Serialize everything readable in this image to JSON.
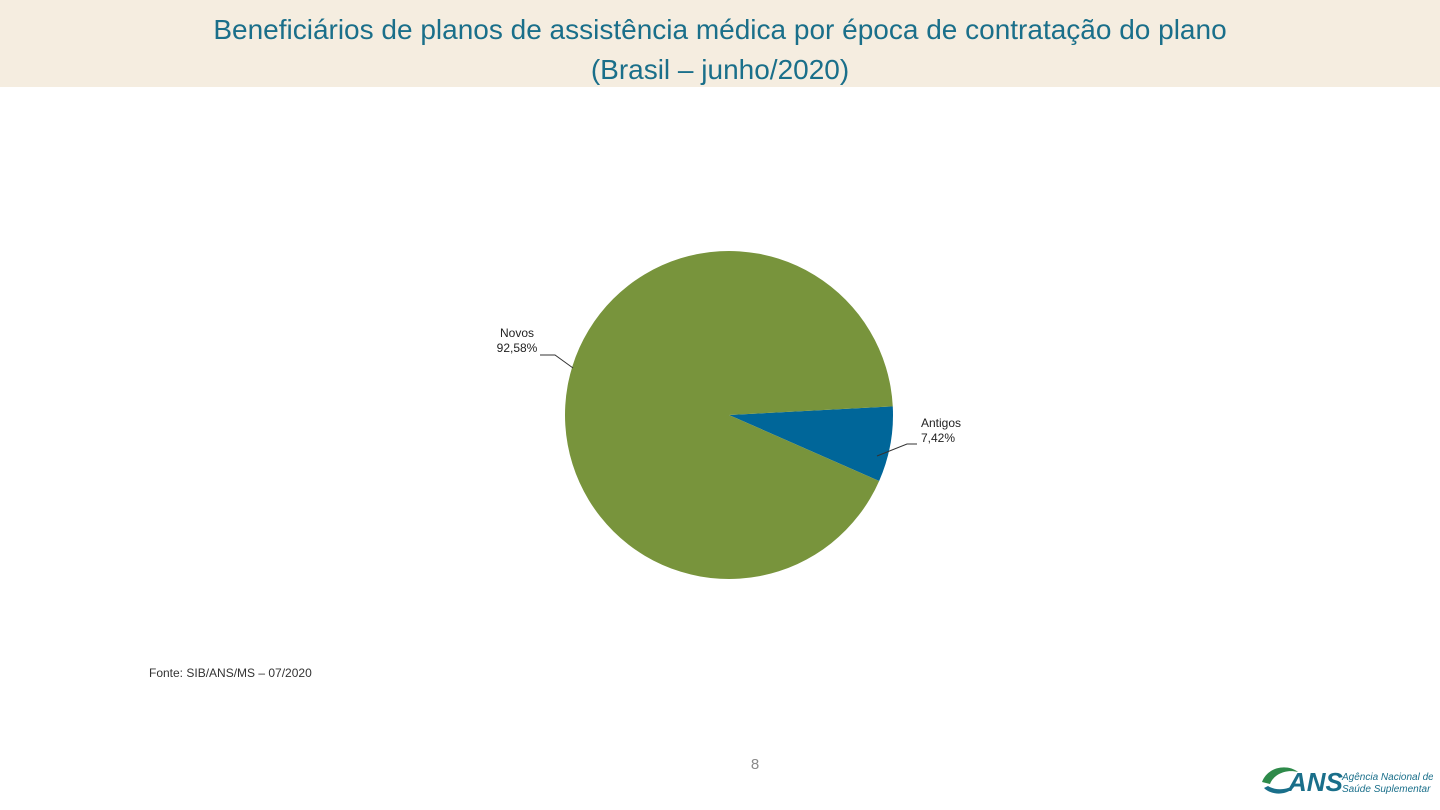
{
  "slide": {
    "title_line1": "Beneficiários de planos de assistência médica por época de contratação do plano",
    "title_line2": "(Brasil – junho/2020)",
    "source": "Fonte: SIB/ANS/MS – 07/2020",
    "page_number": "8",
    "logo": {
      "wordmark": "ANS",
      "line1": "Agência Nacional de",
      "line2": "Saúde Suplementar"
    },
    "colors": {
      "title": "#1a6f8a",
      "band": "#f5ede0"
    }
  },
  "chart_data": {
    "type": "pie",
    "slices": [
      {
        "name": "Antigos",
        "value": 7.42,
        "label": "7,42%",
        "color": "#006699"
      },
      {
        "name": "Novos",
        "value": 92.58,
        "label": "92,58%",
        "color": "#78943c"
      }
    ],
    "legend": "none"
  }
}
